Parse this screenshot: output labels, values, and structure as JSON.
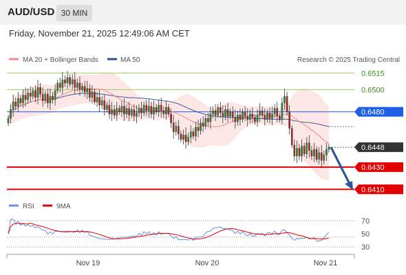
{
  "header": {
    "symbol": "AUD/USD",
    "timeframe": "30 MIN",
    "datetime": "Friday, November 21, 2025 12:49:06 AM CET"
  },
  "legend": {
    "ma20_label": "MA 20 + Bollinger Bands",
    "ma50_label": "MA 50",
    "research": "Research © 2025 Trading Central",
    "rsi_label": "RSI",
    "rsi9_label": "9MA"
  },
  "colors": {
    "ma20": "#f08a8a",
    "ma50": "#3a5a9a",
    "band": "#fde2e2",
    "up": "#2e8b2e",
    "down": "#b22222",
    "resistance": "#9acd5a",
    "pivot": "#1e5fe6",
    "support": "#e00000",
    "current": "#333333",
    "rsi": "#6a8fe0",
    "rsi_ma": "#e00000"
  },
  "chart_data": [
    {
      "type": "candlestick",
      "x_labels": [
        "Nov 19",
        "Nov 20",
        "Nov 21"
      ],
      "y_range": [
        0.6404,
        0.6522
      ],
      "levels": [
        {
          "value": 0.6515,
          "label": "0.6515",
          "kind": "resistance"
        },
        {
          "value": 0.65,
          "label": "0.6500",
          "kind": "resistance"
        },
        {
          "value": 0.648,
          "label": "0.6480",
          "kind": "pivot"
        },
        {
          "value": 0.6448,
          "label": "0.6448",
          "kind": "current"
        },
        {
          "value": 0.643,
          "label": "0.6430",
          "kind": "support"
        },
        {
          "value": 0.641,
          "label": "0.6410",
          "kind": "support"
        }
      ],
      "closes": [
        0.6474,
        0.6482,
        0.6489,
        0.6485,
        0.6492,
        0.6488,
        0.6495,
        0.6491,
        0.6497,
        0.6494,
        0.6499,
        0.6493,
        0.6502,
        0.6496,
        0.649,
        0.6496,
        0.6488,
        0.6494,
        0.6491,
        0.6499,
        0.6506,
        0.6502,
        0.6509,
        0.6506,
        0.6511,
        0.6505,
        0.6509,
        0.6502,
        0.6506,
        0.65,
        0.6503,
        0.6498,
        0.6501,
        0.6493,
        0.6498,
        0.6489,
        0.6493,
        0.6486,
        0.649,
        0.6482,
        0.6486,
        0.6478,
        0.6482,
        0.6477,
        0.6483,
        0.648,
        0.6485,
        0.6478,
        0.6483,
        0.6477,
        0.6482,
        0.6476,
        0.6479,
        0.6483,
        0.6479,
        0.6486,
        0.6481,
        0.6485,
        0.6478,
        0.6484,
        0.648,
        0.6486,
        0.6481,
        0.6478,
        0.6484,
        0.6478,
        0.647,
        0.6462,
        0.6467,
        0.646,
        0.6455,
        0.6459,
        0.6453,
        0.6457,
        0.6462,
        0.6458,
        0.6466,
        0.6463,
        0.647,
        0.6467,
        0.6474,
        0.6471,
        0.6478,
        0.6481,
        0.6477,
        0.6484,
        0.6479,
        0.6476,
        0.6482,
        0.6476,
        0.648,
        0.6475,
        0.6471,
        0.6477,
        0.6473,
        0.648,
        0.6476,
        0.6473,
        0.6478,
        0.6475,
        0.6471,
        0.6477,
        0.6481,
        0.6477,
        0.6473,
        0.6479,
        0.6474,
        0.6478,
        0.6483,
        0.6476,
        0.6473,
        0.6488,
        0.6494,
        0.648,
        0.6465,
        0.645,
        0.644,
        0.6447,
        0.644,
        0.6449,
        0.6442,
        0.6452,
        0.6445,
        0.644,
        0.6446,
        0.6437,
        0.6443,
        0.6436,
        0.6441,
        0.6446,
        0.6448
      ]
    },
    {
      "type": "line",
      "title": "RSI",
      "y_range": [
        25,
        75
      ],
      "y_ticks": [
        30,
        50,
        70
      ],
      "ref_levels": [
        30,
        45,
        70
      ]
    }
  ]
}
